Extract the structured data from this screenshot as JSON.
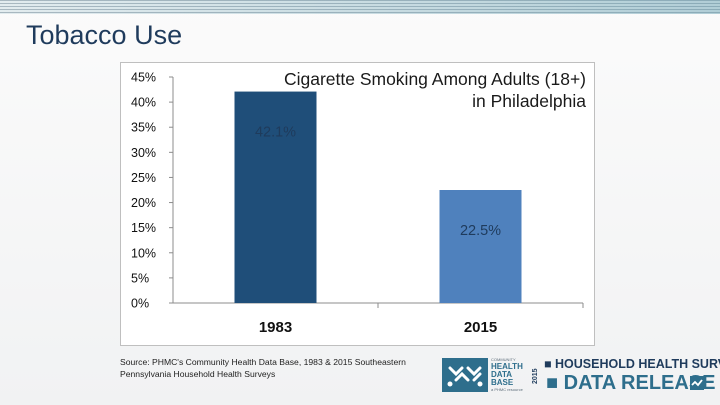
{
  "slide": {
    "title": "Tobacco Use",
    "source": "Source: PHMC's Community Health Data Base, 1983 & 2015 Southeastern Pennsylvania Household Health Surveys"
  },
  "logo": {
    "community": "COMMUNITY",
    "health": "HEALTH",
    "data_base": "DATA BASE",
    "phmc": "a PHMC resource",
    "year": "2015",
    "survey": "■ HOUSEHOLD HEALTH SURVEY",
    "release": "■ DATA RELEASE"
  },
  "chart_data": {
    "type": "bar",
    "title_lines": [
      "Cigarette Smoking Among Adults (18+)",
      "in Philadelphia"
    ],
    "categories": [
      "1983",
      "2015"
    ],
    "values": [
      42.1,
      22.5
    ],
    "data_labels": [
      "42.1%",
      "22.5%"
    ],
    "bar_colors": [
      "#1f4e79",
      "#4f81bd"
    ],
    "label_colors": [
      "#1f3b5c",
      "#1f3b5c"
    ],
    "yticks": [
      "0%",
      "5%",
      "10%",
      "15%",
      "20%",
      "25%",
      "30%",
      "35%",
      "40%",
      "45%"
    ],
    "ylim": [
      0,
      45
    ],
    "grid": false,
    "legend": "none"
  }
}
